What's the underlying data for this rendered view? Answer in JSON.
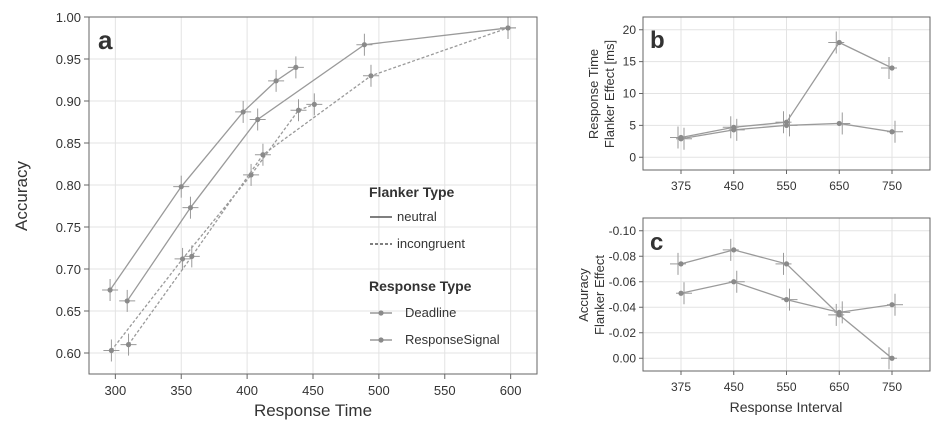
{
  "colors": {
    "line": "#9a9a9a",
    "axis": "#666666",
    "grid": "#e3e3e3",
    "text": "#333333",
    "point": "#8a8a8a"
  },
  "chart_data": [
    {
      "panel": "a",
      "type": "line",
      "xlabel": "Response Time",
      "ylabel": "Accuracy",
      "xlim": [
        280,
        620
      ],
      "ylim": [
        0.575,
        1.0
      ],
      "xticks": [
        "300",
        "350",
        "400",
        "450",
        "500",
        "550",
        "600"
      ],
      "yticks": [
        "0.60",
        "0.65",
        "0.70",
        "0.75",
        "0.80",
        "0.85",
        "0.90",
        "0.95",
        "1.00"
      ],
      "grid": true,
      "legend_position": "right",
      "legend": {
        "flanker_title": "Flanker Type",
        "flanker_items": [
          "neutral",
          "incongruent"
        ],
        "response_title": "Response Type",
        "response_items": [
          "Deadline",
          "ResponseSignal"
        ]
      },
      "series": [
        {
          "name": "neutral / Deadline",
          "dash": false,
          "points": [
            [
              296,
              0.675
            ],
            [
              350,
              0.798
            ],
            [
              397,
              0.887
            ],
            [
              422,
              0.924
            ],
            [
              437,
              0.94
            ]
          ]
        },
        {
          "name": "neutral / ResponseSignal",
          "dash": false,
          "points": [
            [
              309,
              0.662
            ],
            [
              357,
              0.773
            ],
            [
              408,
              0.878
            ],
            [
              489,
              0.967
            ],
            [
              598,
              0.987
            ]
          ]
        },
        {
          "name": "incongruent / Deadline",
          "dash": true,
          "points": [
            [
              297,
              0.603
            ],
            [
              351,
              0.712
            ],
            [
              403,
              0.812
            ],
            [
              439,
              0.889
            ],
            [
              451,
              0.896
            ]
          ]
        },
        {
          "name": "incongruent / ResponseSignal",
          "dash": true,
          "points": [
            [
              310,
              0.61
            ],
            [
              358,
              0.715
            ],
            [
              412,
              0.836
            ],
            [
              494,
              0.93
            ],
            [
              598,
              0.987
            ]
          ]
        }
      ]
    },
    {
      "panel": "b",
      "type": "line",
      "xlabel": "",
      "ylabel_lines": [
        "Response Time",
        "Flanker Effect [ms]"
      ],
      "categories": [
        "375",
        "450",
        "550",
        "650",
        "750"
      ],
      "ylim": [
        -2,
        22
      ],
      "yticks": [
        "0",
        "5",
        "10",
        "15",
        "20"
      ],
      "grid": true,
      "series": [
        {
          "values": [
            3.1,
            4.7,
            5.5,
            18.0,
            14.0
          ]
        },
        {
          "values": [
            2.9,
            4.3,
            5.0,
            5.3,
            4.0
          ]
        }
      ]
    },
    {
      "panel": "c",
      "type": "line",
      "xlabel": "Response Interval",
      "ylabel_lines": [
        "Accuracy",
        "Flanker Effect"
      ],
      "categories": [
        "375",
        "450",
        "550",
        "650",
        "750"
      ],
      "ylim": [
        0.01,
        -0.11
      ],
      "yticks": [
        "-0.10",
        "-0.08",
        "-0.06",
        "-0.04",
        "-0.02",
        "0.00"
      ],
      "grid": true,
      "series": [
        {
          "values": [
            -0.074,
            -0.085,
            -0.074,
            -0.034,
            0.0
          ]
        },
        {
          "values": [
            -0.051,
            -0.06,
            -0.046,
            -0.036,
            -0.042
          ]
        }
      ]
    }
  ]
}
